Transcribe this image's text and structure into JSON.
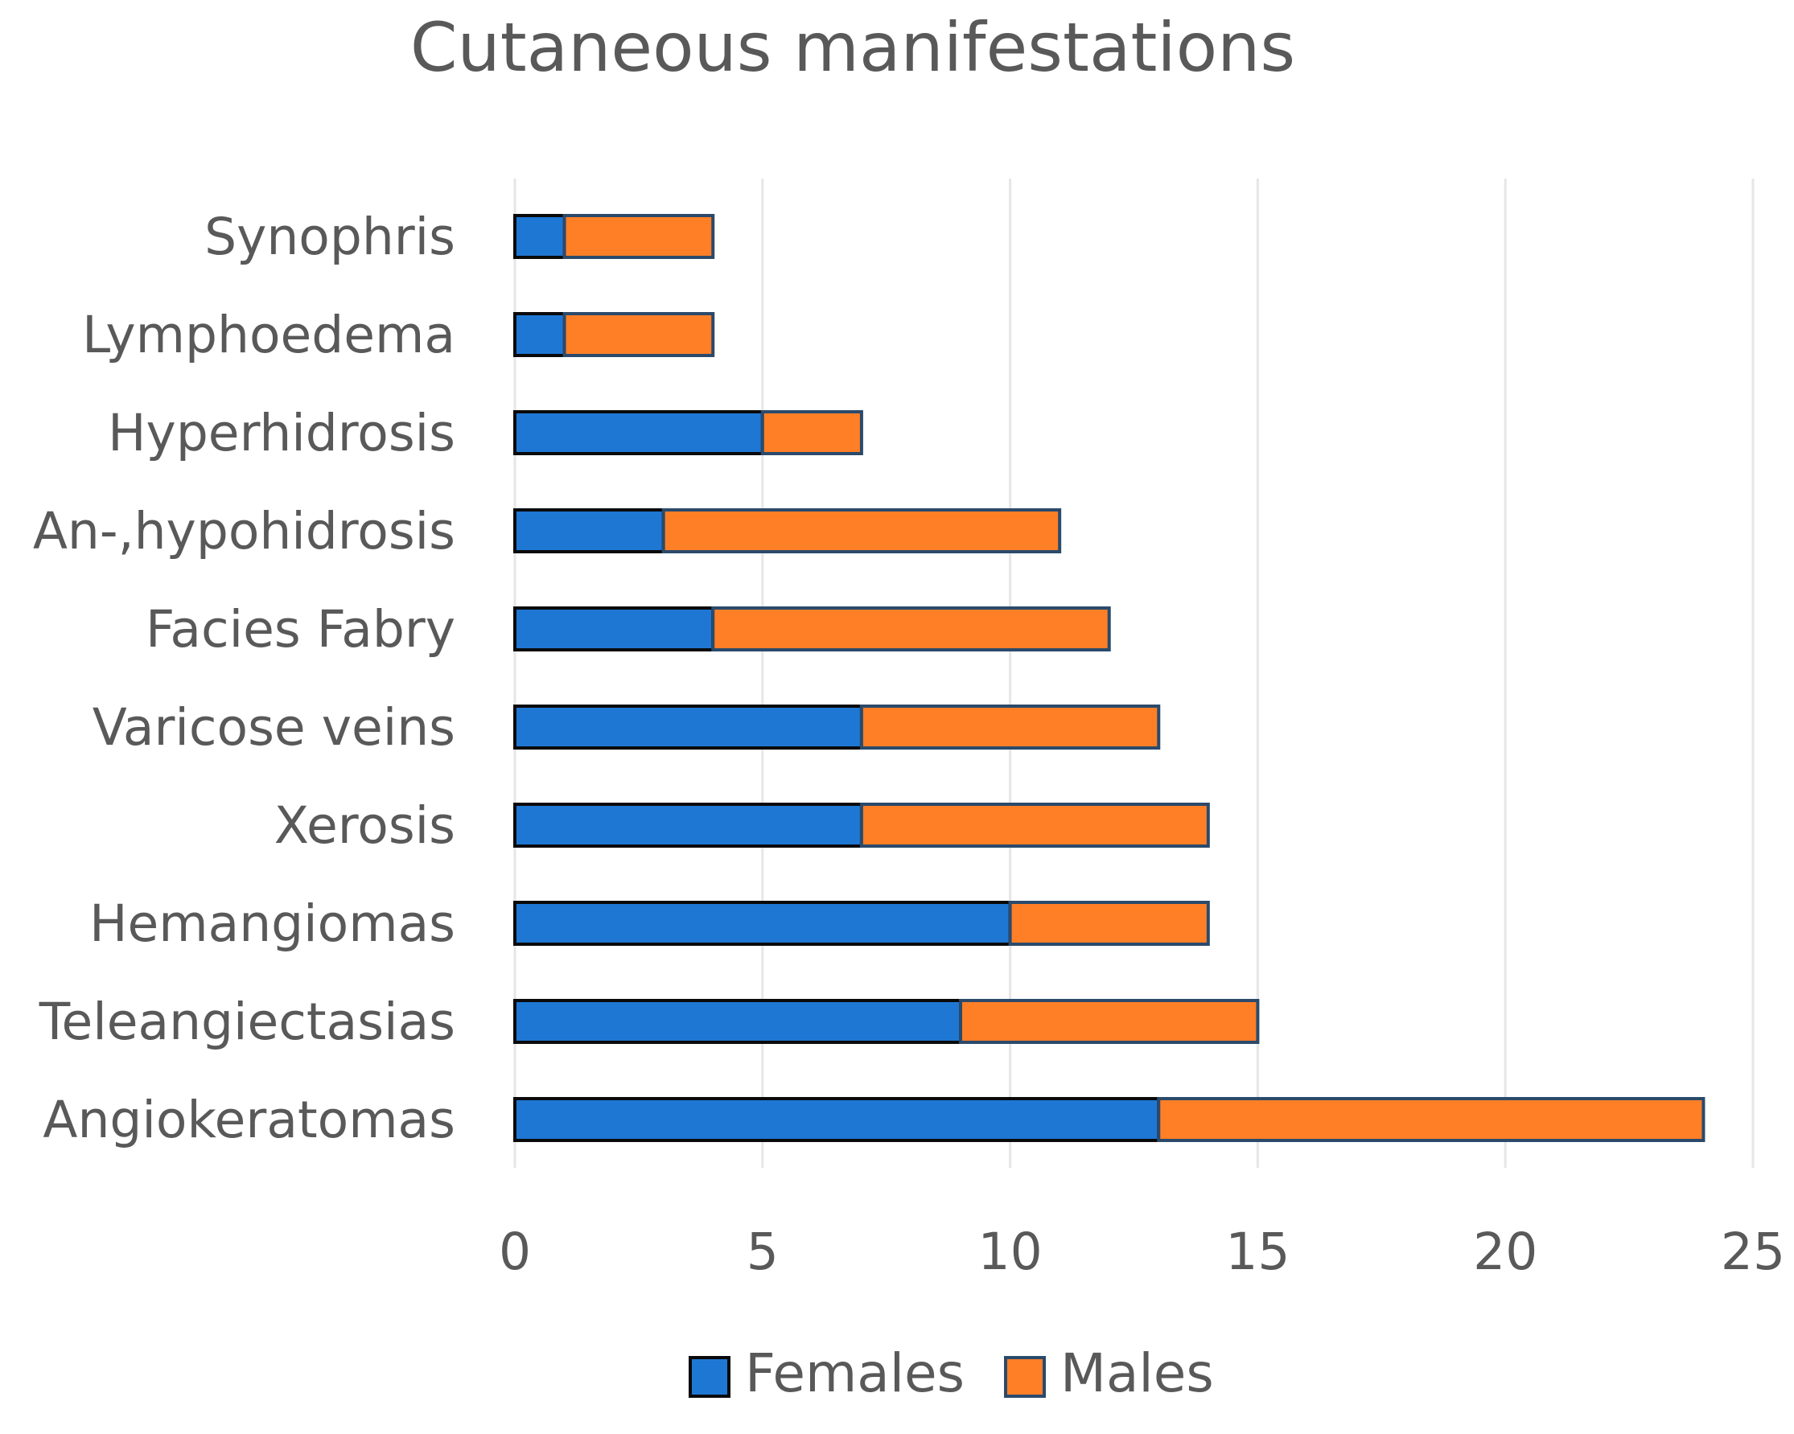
{
  "chart_data": {
    "type": "bar",
    "orientation": "horizontal",
    "stacked": true,
    "title": "Cutaneous manifestations",
    "xlabel": "",
    "ylabel": "",
    "xlim": [
      0,
      25
    ],
    "x_ticks": [
      0,
      5,
      10,
      15,
      20,
      25
    ],
    "x_tick_labels": [
      "0",
      "5",
      "10",
      "15",
      "20",
      "25"
    ],
    "grid": true,
    "legend_position": "bottom",
    "categories": [
      "Synophris",
      "Lymphoedema",
      "Hyperhidrosis",
      "An-,hypohidrosis",
      "Facies Fabry",
      "Varicose veins",
      "Xerosis",
      "Hemangiomas",
      "Teleangiectasias",
      "Angiokeratomas"
    ],
    "series": [
      {
        "name": "Females",
        "color": "#1f77d4",
        "values": [
          1,
          1,
          5,
          3,
          4,
          7,
          7,
          10,
          9,
          13
        ]
      },
      {
        "name": "Males",
        "color": "#ff7f27",
        "values": [
          3,
          3,
          2,
          8,
          8,
          6,
          7,
          4,
          6,
          11
        ]
      }
    ],
    "colors": {
      "grid": "#e6e6e6",
      "text": "#595959",
      "bar_border_females": "#0a0a0a",
      "bar_border_males": "#2b4a6b"
    }
  }
}
